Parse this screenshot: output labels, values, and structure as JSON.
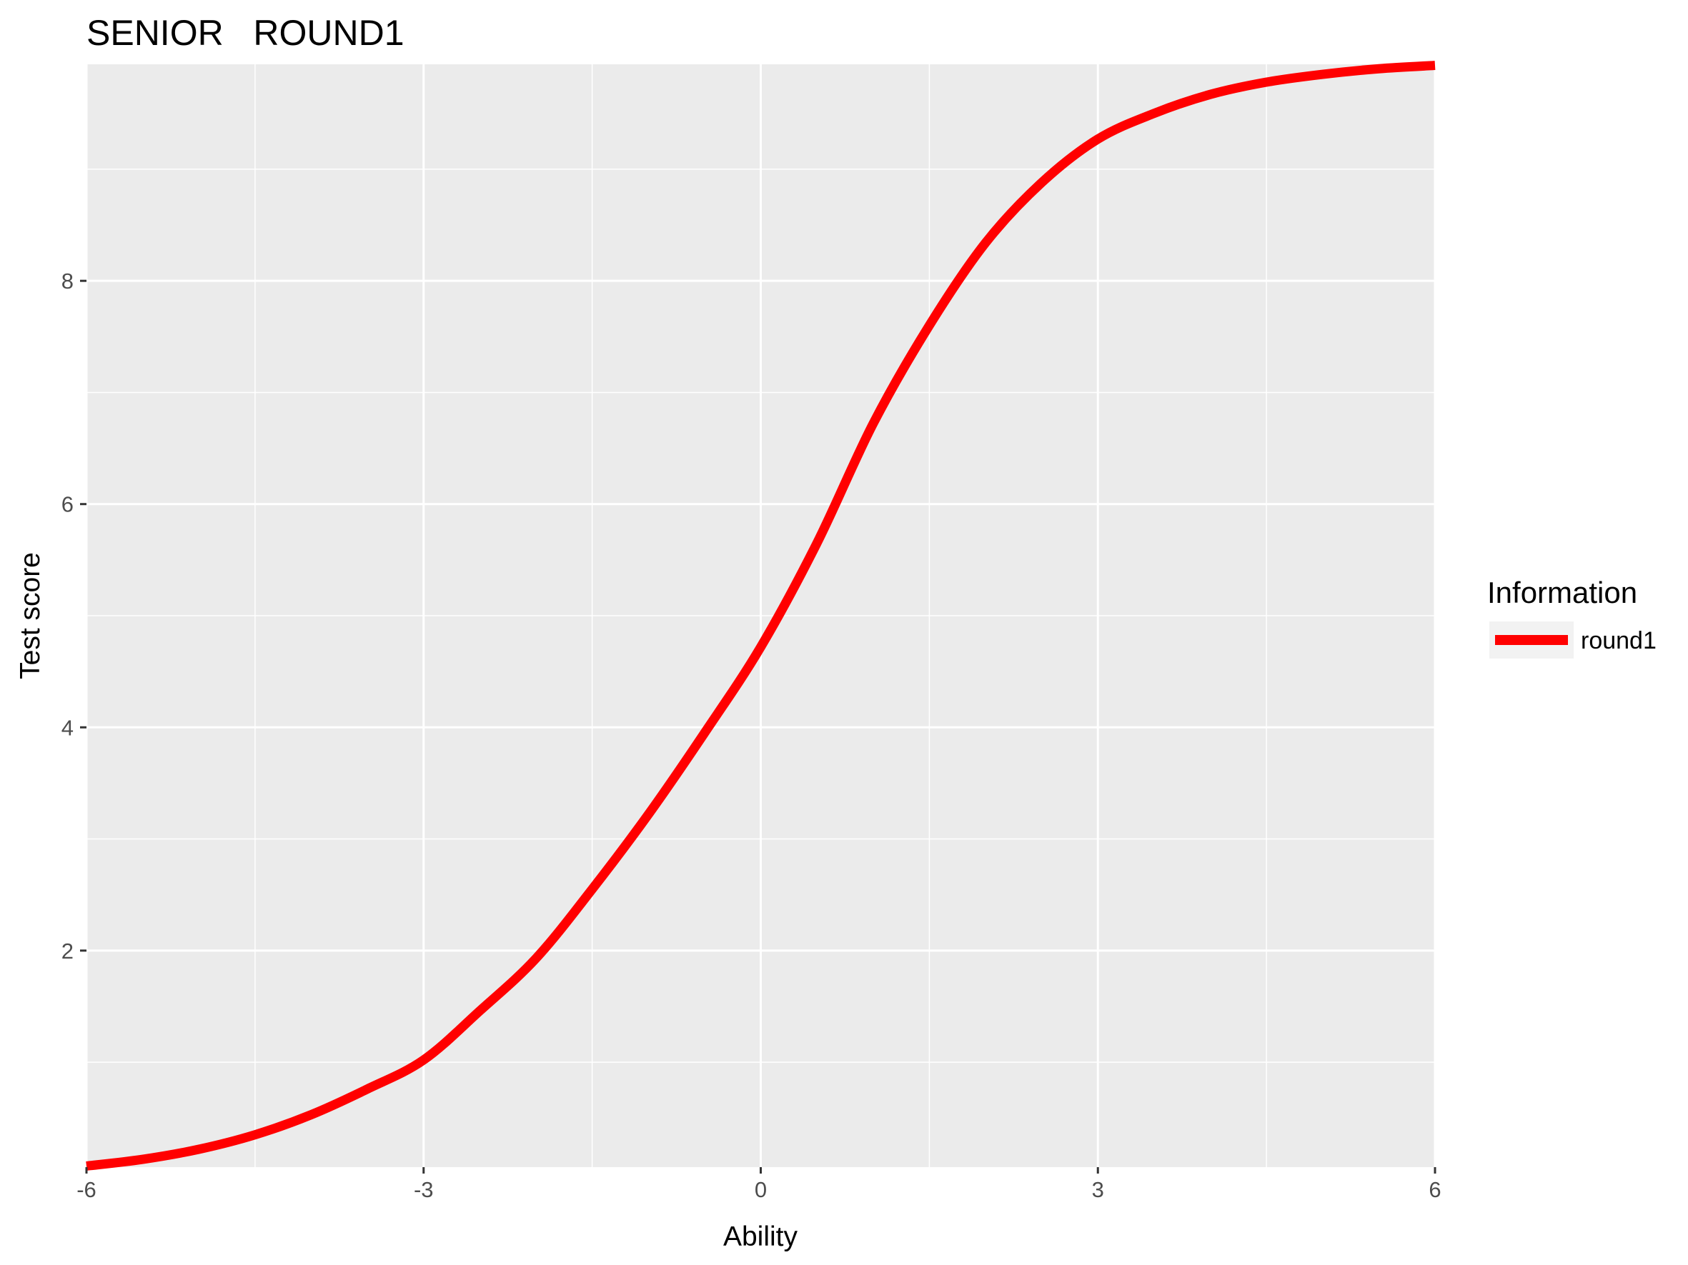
{
  "chart_data": {
    "type": "line",
    "title": "SENIOR   ROUND1",
    "xlabel": "Ability",
    "ylabel": "Test score",
    "xlim": [
      -6,
      6
    ],
    "ylim": [
      0.06,
      9.94
    ],
    "x_ticks": [
      -6,
      -3,
      0,
      3,
      6
    ],
    "x_tick_labels": [
      "-6",
      "-3",
      "0",
      "3",
      "6"
    ],
    "y_ticks": [
      2,
      4,
      6,
      8
    ],
    "y_tick_labels": [
      "2",
      "4",
      "6",
      "8"
    ],
    "grid": true,
    "legend": {
      "title": "Information",
      "position": "right"
    },
    "series": [
      {
        "name": "round1",
        "color": "#ff0000",
        "x": [
          -6,
          -5.5,
          -5,
          -4.5,
          -4,
          -3.5,
          -3,
          -2.5,
          -2,
          -1.5,
          -1,
          -0.5,
          0,
          0.5,
          1,
          1.5,
          2,
          2.5,
          3,
          3.5,
          4,
          4.5,
          5,
          5.5,
          6
        ],
        "y": [
          0.07,
          0.13,
          0.22,
          0.35,
          0.53,
          0.76,
          1.02,
          1.46,
          1.93,
          2.55,
          3.22,
          3.95,
          4.72,
          5.65,
          6.72,
          7.6,
          8.34,
          8.88,
          9.27,
          9.5,
          9.67,
          9.78,
          9.85,
          9.9,
          9.93
        ]
      }
    ]
  }
}
